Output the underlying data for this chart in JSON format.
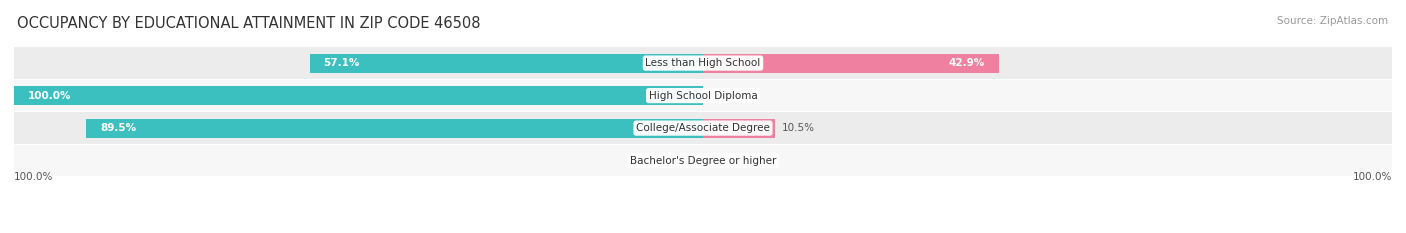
{
  "title": "OCCUPANCY BY EDUCATIONAL ATTAINMENT IN ZIP CODE 46508",
  "source": "Source: ZipAtlas.com",
  "categories": [
    "Less than High School",
    "High School Diploma",
    "College/Associate Degree",
    "Bachelor's Degree or higher"
  ],
  "owner_pct": [
    57.1,
    100.0,
    89.5,
    0.0
  ],
  "renter_pct": [
    42.9,
    0.0,
    10.5,
    0.0
  ],
  "owner_color": "#3bbfbf",
  "renter_color": "#f080a0",
  "row_bg_colors": [
    "#ececec",
    "#f7f7f7",
    "#ececec",
    "#f7f7f7"
  ],
  "label_color_dark": "#555555",
  "title_fontsize": 10.5,
  "source_fontsize": 7.5,
  "label_fontsize": 7.5,
  "cat_fontsize": 7.5,
  "legend_fontsize": 8,
  "figsize": [
    14.06,
    2.33
  ],
  "dpi": 100
}
